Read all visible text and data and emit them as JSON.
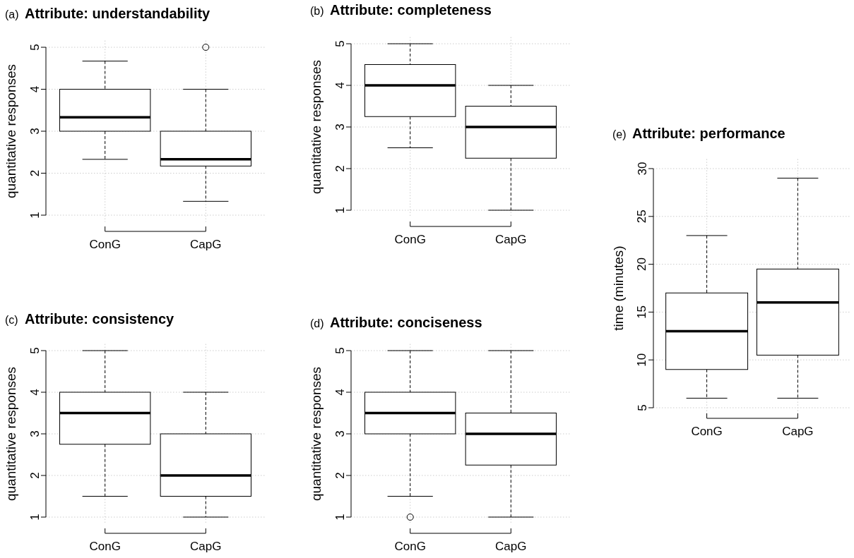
{
  "chart_data": [
    {
      "type": "box",
      "title": "Attribute: understandability",
      "annotations": [
        "(a)"
      ],
      "ylabel": "quantitative responses",
      "categories": [
        "ConG",
        "CapG"
      ],
      "ylim": [
        1,
        5
      ],
      "yticks": [
        1,
        2,
        3,
        4,
        5
      ],
      "grid": true,
      "boxes": [
        {
          "low": 2.33,
          "q1": 3,
          "median": 3.33,
          "q3": 4,
          "high": 4.67
        },
        {
          "low": 1.33,
          "q1": 2.17,
          "median": 2.33,
          "q3": 3,
          "high": 4,
          "outliers": [
            5
          ]
        }
      ]
    },
    {
      "type": "box",
      "title": "Attribute: completeness",
      "annotations": [
        "(b)"
      ],
      "ylabel": "quantitative responses",
      "categories": [
        "ConG",
        "CapG"
      ],
      "ylim": [
        1,
        5
      ],
      "yticks": [
        1,
        2,
        3,
        4,
        5
      ],
      "grid": true,
      "boxes": [
        {
          "low": 2.5,
          "q1": 3.25,
          "median": 4,
          "q3": 4.5,
          "high": 5
        },
        {
          "low": 1,
          "q1": 2.25,
          "median": 3,
          "q3": 3.5,
          "high": 4
        }
      ]
    },
    {
      "type": "box",
      "title": "Attribute: consistency",
      "annotations": [
        "(c)"
      ],
      "ylabel": "quantitative responses",
      "categories": [
        "ConG",
        "CapG"
      ],
      "ylim": [
        1,
        5
      ],
      "yticks": [
        1,
        2,
        3,
        4,
        5
      ],
      "grid": true,
      "boxes": [
        {
          "low": 1.5,
          "q1": 2.75,
          "median": 3.5,
          "q3": 4,
          "high": 5
        },
        {
          "low": 1,
          "q1": 1.5,
          "median": 2,
          "q3": 3,
          "high": 4
        }
      ]
    },
    {
      "type": "box",
      "title": "Attribute: conciseness",
      "annotations": [
        "(d)"
      ],
      "ylabel": "quantitative responses",
      "categories": [
        "ConG",
        "CapG"
      ],
      "ylim": [
        1,
        5
      ],
      "yticks": [
        1,
        2,
        3,
        4,
        5
      ],
      "grid": true,
      "boxes": [
        {
          "low": 1.5,
          "q1": 3,
          "median": 3.5,
          "q3": 4,
          "high": 5,
          "outliers": [
            1
          ]
        },
        {
          "low": 1,
          "q1": 2.25,
          "median": 3,
          "q3": 3.5,
          "high": 5
        }
      ]
    },
    {
      "type": "box",
      "title": "Attribute: performance",
      "annotations": [
        "(e)"
      ],
      "ylabel": "time (minutes)",
      "categories": [
        "ConG",
        "CapG"
      ],
      "ylim": [
        5,
        30
      ],
      "yticks": [
        5,
        10,
        15,
        20,
        25,
        30
      ],
      "grid": true,
      "boxes": [
        {
          "low": 6,
          "q1": 9,
          "median": 13,
          "q3": 17,
          "high": 23
        },
        {
          "low": 6,
          "q1": 10.5,
          "median": 16,
          "q3": 19.5,
          "high": 29
        }
      ]
    }
  ]
}
